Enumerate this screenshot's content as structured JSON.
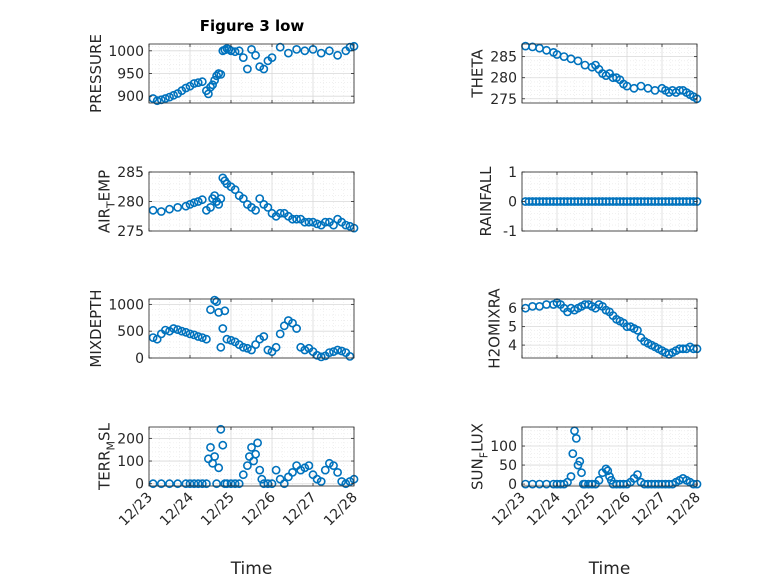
{
  "figure_title": "Figure 3 low",
  "colors": {
    "marker": "#0072BD",
    "axis": "#262626",
    "grid": "#d9d9d9",
    "minorgrid": "#e6e6e6"
  },
  "chart_data": [
    {
      "type": "scatter",
      "ylabel": "PRESSURE",
      "ylabel_sub": "",
      "ylabel_tail": "",
      "ylim": [
        885,
        1015
      ],
      "yticks": [
        "900",
        "950",
        "1000"
      ],
      "ytick_values": [
        900,
        950,
        1000
      ],
      "xlim": [
        0,
        5
      ],
      "xticks": [
        "12/23",
        "12/24",
        "12/25",
        "12/26",
        "12/27",
        "12/28"
      ],
      "xtick_values": [
        0,
        1,
        2,
        3,
        4,
        5
      ],
      "show_xticklabels": false,
      "xlabel": "",
      "x": [
        0.1,
        0.2,
        0.3,
        0.4,
        0.5,
        0.6,
        0.7,
        0.8,
        0.9,
        1.0,
        1.1,
        1.2,
        1.3,
        1.4,
        1.45,
        1.5,
        1.55,
        1.6,
        1.65,
        1.7,
        1.75,
        1.8,
        1.85,
        1.9,
        1.95,
        2.0,
        2.1,
        2.2,
        2.3,
        2.4,
        2.5,
        2.6,
        2.7,
        2.8,
        2.9,
        3.0,
        3.2,
        3.4,
        3.6,
        3.8,
        4.0,
        4.2,
        4.4,
        4.6,
        4.8,
        4.9,
        5.0
      ],
      "y": [
        895,
        890,
        892,
        895,
        898,
        902,
        906,
        912,
        918,
        922,
        928,
        930,
        932,
        912,
        905,
        920,
        925,
        935,
        945,
        950,
        948,
        1000,
        1002,
        1005,
        1003,
        1000,
        998,
        1000,
        985,
        960,
        1003,
        990,
        965,
        960,
        978,
        985,
        1008,
        995,
        1003,
        1000,
        1003,
        995,
        1000,
        990,
        1000,
        1008,
        1010
      ]
    },
    {
      "type": "scatter",
      "ylabel": "THETA",
      "ylabel_sub": "",
      "ylabel_tail": "",
      "ylim": [
        274,
        288
      ],
      "yticks": [
        "275",
        "280",
        "285"
      ],
      "ytick_values": [
        275,
        280,
        285
      ],
      "xlim": [
        0,
        5
      ],
      "xticks": [
        "12/23",
        "12/24",
        "12/25",
        "12/26",
        "12/27",
        "12/28"
      ],
      "xtick_values": [
        0,
        1,
        2,
        3,
        4,
        5
      ],
      "show_xticklabels": false,
      "xlabel": "",
      "x": [
        0.1,
        0.3,
        0.5,
        0.7,
        0.9,
        1.0,
        1.2,
        1.4,
        1.6,
        1.8,
        2.0,
        2.1,
        2.2,
        2.3,
        2.4,
        2.5,
        2.6,
        2.7,
        2.8,
        2.9,
        3.0,
        3.2,
        3.4,
        3.6,
        3.8,
        4.0,
        4.1,
        4.2,
        4.3,
        4.4,
        4.5,
        4.6,
        4.7,
        4.8,
        4.9,
        5.0
      ],
      "y": [
        287.5,
        287.3,
        287.0,
        286.5,
        286.0,
        285.5,
        285.0,
        284.5,
        284.0,
        283.0,
        282.5,
        283.0,
        282.0,
        281.0,
        280.5,
        281.0,
        280.0,
        280.0,
        279.5,
        278.5,
        278.0,
        277.5,
        278.0,
        277.5,
        277.0,
        277.5,
        277.0,
        276.5,
        277.0,
        276.5,
        277.0,
        277.0,
        276.5,
        276.0,
        275.5,
        275.0
      ]
    },
    {
      "type": "scatter",
      "ylabel": "AIR",
      "ylabel_sub": "T",
      "ylabel_tail": "EMP",
      "ylim": [
        275,
        285
      ],
      "yticks": [
        "275",
        "280",
        "285"
      ],
      "ytick_values": [
        275,
        280,
        285
      ],
      "xlim": [
        0,
        5
      ],
      "xticks": [
        "12/23",
        "12/24",
        "12/25",
        "12/26",
        "12/27",
        "12/28"
      ],
      "xtick_values": [
        0,
        1,
        2,
        3,
        4,
        5
      ],
      "show_xticklabels": false,
      "xlabel": "",
      "x": [
        0.1,
        0.3,
        0.5,
        0.7,
        0.9,
        1.0,
        1.1,
        1.2,
        1.3,
        1.4,
        1.5,
        1.55,
        1.6,
        1.65,
        1.7,
        1.75,
        1.8,
        1.85,
        1.9,
        2.0,
        2.1,
        2.2,
        2.3,
        2.4,
        2.5,
        2.6,
        2.7,
        2.8,
        2.9,
        3.0,
        3.1,
        3.2,
        3.3,
        3.4,
        3.5,
        3.6,
        3.7,
        3.8,
        3.9,
        4.0,
        4.1,
        4.2,
        4.3,
        4.4,
        4.5,
        4.6,
        4.7,
        4.8,
        4.9,
        5.0
      ],
      "y": [
        278.5,
        278.3,
        278.7,
        279.0,
        279.2,
        279.5,
        279.8,
        280.0,
        280.3,
        278.5,
        279.0,
        280.5,
        281.0,
        280.0,
        279.5,
        280.5,
        284.0,
        283.5,
        283.0,
        282.5,
        282.0,
        281.0,
        280.5,
        279.5,
        279.0,
        278.5,
        280.5,
        279.5,
        279.0,
        278.0,
        277.5,
        278.0,
        278.0,
        277.5,
        277.0,
        277.0,
        277.0,
        276.5,
        276.5,
        276.5,
        276.2,
        276.0,
        276.5,
        276.5,
        276.0,
        277.0,
        276.5,
        276.0,
        275.8,
        275.5
      ]
    },
    {
      "type": "scatter",
      "ylabel": "RAINFALL",
      "ylabel_sub": "",
      "ylabel_tail": "",
      "ylim": [
        -1,
        1
      ],
      "yticks": [
        "-1",
        "0",
        "1"
      ],
      "ytick_values": [
        -1,
        0,
        1
      ],
      "xlim": [
        0,
        5
      ],
      "xticks": [
        "12/23",
        "12/24",
        "12/25",
        "12/26",
        "12/27",
        "12/28"
      ],
      "xtick_values": [
        0,
        1,
        2,
        3,
        4,
        5
      ],
      "show_xticklabels": false,
      "xlabel": "",
      "x": [
        0.1,
        0.2,
        0.3,
        0.4,
        0.5,
        0.6,
        0.7,
        0.8,
        0.9,
        1.0,
        1.1,
        1.2,
        1.3,
        1.4,
        1.5,
        1.6,
        1.7,
        1.8,
        1.9,
        2.0,
        2.1,
        2.2,
        2.3,
        2.4,
        2.5,
        2.6,
        2.7,
        2.8,
        2.9,
        3.0,
        3.1,
        3.2,
        3.3,
        3.4,
        3.5,
        3.6,
        3.7,
        3.8,
        3.9,
        4.0,
        4.1,
        4.2,
        4.3,
        4.4,
        4.5,
        4.6,
        4.7,
        4.8,
        4.9,
        5.0
      ],
      "y": [
        0,
        0,
        0,
        0,
        0,
        0,
        0,
        0,
        0,
        0,
        0,
        0,
        0,
        0,
        0,
        0,
        0,
        0,
        0,
        0,
        0,
        0,
        0,
        0,
        0,
        0,
        0,
        0,
        0,
        0,
        0,
        0,
        0,
        0,
        0,
        0,
        0,
        0,
        0,
        0,
        0,
        0,
        0,
        0,
        0,
        0,
        0,
        0,
        0,
        0
      ]
    },
    {
      "type": "scatter",
      "ylabel": "MIXDEPTH",
      "ylabel_sub": "",
      "ylabel_tail": "",
      "ylim": [
        0,
        1100
      ],
      "yticks": [
        "0",
        "500",
        "1000"
      ],
      "ytick_values": [
        0,
        500,
        1000
      ],
      "xlim": [
        0,
        5
      ],
      "xticks": [
        "12/23",
        "12/24",
        "12/25",
        "12/26",
        "12/27",
        "12/28"
      ],
      "xtick_values": [
        0,
        1,
        2,
        3,
        4,
        5
      ],
      "show_xticklabels": false,
      "xlabel": "",
      "x": [
        0.1,
        0.2,
        0.3,
        0.4,
        0.5,
        0.6,
        0.7,
        0.8,
        0.9,
        1.0,
        1.1,
        1.2,
        1.3,
        1.4,
        1.5,
        1.6,
        1.65,
        1.7,
        1.75,
        1.8,
        1.85,
        1.9,
        2.0,
        2.1,
        2.2,
        2.3,
        2.4,
        2.5,
        2.6,
        2.7,
        2.8,
        2.9,
        3.0,
        3.1,
        3.2,
        3.3,
        3.4,
        3.5,
        3.6,
        3.7,
        3.8,
        3.9,
        4.0,
        4.1,
        4.2,
        4.3,
        4.4,
        4.5,
        4.6,
        4.7,
        4.8,
        4.9
      ],
      "y": [
        380,
        350,
        450,
        520,
        500,
        550,
        530,
        500,
        480,
        450,
        430,
        400,
        380,
        350,
        900,
        1080,
        1050,
        850,
        200,
        550,
        880,
        350,
        330,
        300,
        250,
        200,
        180,
        150,
        250,
        350,
        400,
        150,
        120,
        200,
        450,
        600,
        700,
        650,
        550,
        200,
        150,
        180,
        120,
        50,
        20,
        40,
        100,
        120,
        150,
        130,
        100,
        30
      ]
    },
    {
      "type": "scatter",
      "ylabel": "H2OMIXRA",
      "ylabel_sub": "",
      "ylabel_tail": "",
      "ylim": [
        3.3,
        6.5
      ],
      "yticks": [
        "4",
        "5",
        "6"
      ],
      "ytick_values": [
        4,
        5,
        6
      ],
      "xlim": [
        0,
        5
      ],
      "xticks": [
        "12/23",
        "12/24",
        "12/25",
        "12/26",
        "12/27",
        "12/28"
      ],
      "xtick_values": [
        0,
        1,
        2,
        3,
        4,
        5
      ],
      "show_xticklabels": false,
      "xlabel": "",
      "x": [
        0.1,
        0.3,
        0.5,
        0.7,
        0.9,
        1.0,
        1.1,
        1.2,
        1.3,
        1.4,
        1.5,
        1.6,
        1.7,
        1.8,
        1.9,
        2.0,
        2.1,
        2.2,
        2.3,
        2.4,
        2.5,
        2.6,
        2.7,
        2.8,
        2.9,
        3.0,
        3.1,
        3.2,
        3.3,
        3.4,
        3.5,
        3.6,
        3.7,
        3.8,
        3.9,
        4.0,
        4.1,
        4.2,
        4.3,
        4.4,
        4.5,
        4.6,
        4.7,
        4.8,
        4.9,
        5.0
      ],
      "y": [
        6.0,
        6.1,
        6.1,
        6.2,
        6.2,
        6.3,
        6.2,
        6.0,
        5.8,
        6.0,
        5.9,
        6.0,
        6.1,
        6.2,
        6.2,
        6.1,
        6.0,
        6.2,
        6.1,
        5.9,
        5.8,
        5.6,
        5.4,
        5.3,
        5.2,
        5.0,
        5.0,
        4.9,
        4.8,
        4.4,
        4.2,
        4.1,
        4.0,
        3.9,
        3.8,
        3.7,
        3.6,
        3.5,
        3.6,
        3.7,
        3.8,
        3.8,
        3.8,
        3.9,
        3.8,
        3.8
      ]
    },
    {
      "type": "scatter",
      "ylabel": "TERR",
      "ylabel_sub": "M",
      "ylabel_tail": "SL",
      "ylim": [
        -10,
        250
      ],
      "yticks": [
        "0",
        "100",
        "200"
      ],
      "ytick_values": [
        0,
        100,
        200
      ],
      "xlim": [
        0,
        5
      ],
      "xticks": [
        "12/23",
        "12/24",
        "12/25",
        "12/26",
        "12/27",
        "12/28"
      ],
      "xtick_values": [
        0,
        1,
        2,
        3,
        4,
        5
      ],
      "show_xticklabels": true,
      "xlabel": "Time",
      "x": [
        0.1,
        0.3,
        0.5,
        0.7,
        0.9,
        1.0,
        1.1,
        1.2,
        1.3,
        1.4,
        1.45,
        1.5,
        1.55,
        1.6,
        1.65,
        1.7,
        1.75,
        1.8,
        1.85,
        1.9,
        2.0,
        2.1,
        2.2,
        2.3,
        2.4,
        2.45,
        2.5,
        2.55,
        2.6,
        2.65,
        2.7,
        2.75,
        2.8,
        2.9,
        3.0,
        3.1,
        3.2,
        3.3,
        3.4,
        3.5,
        3.6,
        3.7,
        3.8,
        3.9,
        4.0,
        4.1,
        4.2,
        4.3,
        4.4,
        4.5,
        4.6,
        4.7,
        4.8,
        4.9,
        5.0
      ],
      "y": [
        0,
        0,
        0,
        0,
        0,
        0,
        0,
        0,
        0,
        0,
        110,
        160,
        90,
        120,
        0,
        70,
        240,
        170,
        0,
        0,
        0,
        0,
        0,
        40,
        80,
        120,
        160,
        100,
        130,
        180,
        60,
        20,
        0,
        0,
        0,
        60,
        20,
        0,
        30,
        50,
        80,
        60,
        70,
        80,
        40,
        20,
        10,
        60,
        90,
        80,
        50,
        10,
        0,
        10,
        20
      ]
    },
    {
      "type": "scatter",
      "ylabel": "SUN",
      "ylabel_sub": "F",
      "ylabel_tail": "LUX",
      "ylim": [
        -5,
        150
      ],
      "yticks": [
        "0",
        "50",
        "100"
      ],
      "ytick_values": [
        0,
        50,
        100
      ],
      "xlim": [
        0,
        5
      ],
      "xticks": [
        "12/23",
        "12/24",
        "12/25",
        "12/26",
        "12/27",
        "12/28"
      ],
      "xtick_values": [
        0,
        1,
        2,
        3,
        4,
        5
      ],
      "show_xticklabels": true,
      "xlabel": "Time",
      "x": [
        0.1,
        0.3,
        0.5,
        0.7,
        0.9,
        1.0,
        1.1,
        1.2,
        1.3,
        1.4,
        1.45,
        1.5,
        1.55,
        1.6,
        1.65,
        1.7,
        1.75,
        1.8,
        1.9,
        2.0,
        2.1,
        2.2,
        2.3,
        2.4,
        2.45,
        2.5,
        2.55,
        2.6,
        2.7,
        2.8,
        2.9,
        3.0,
        3.1,
        3.2,
        3.3,
        3.4,
        3.5,
        3.6,
        3.7,
        3.8,
        3.9,
        4.0,
        4.1,
        4.2,
        4.3,
        4.4,
        4.5,
        4.6,
        4.7,
        4.8,
        4.9,
        5.0
      ],
      "y": [
        0,
        0,
        0,
        0,
        0,
        0,
        0,
        0,
        5,
        20,
        80,
        140,
        120,
        50,
        60,
        30,
        0,
        0,
        0,
        0,
        0,
        10,
        30,
        40,
        35,
        20,
        10,
        0,
        0,
        0,
        0,
        0,
        5,
        15,
        25,
        5,
        0,
        0,
        0,
        0,
        0,
        0,
        0,
        0,
        0,
        5,
        10,
        15,
        10,
        5,
        0,
        0
      ]
    }
  ]
}
